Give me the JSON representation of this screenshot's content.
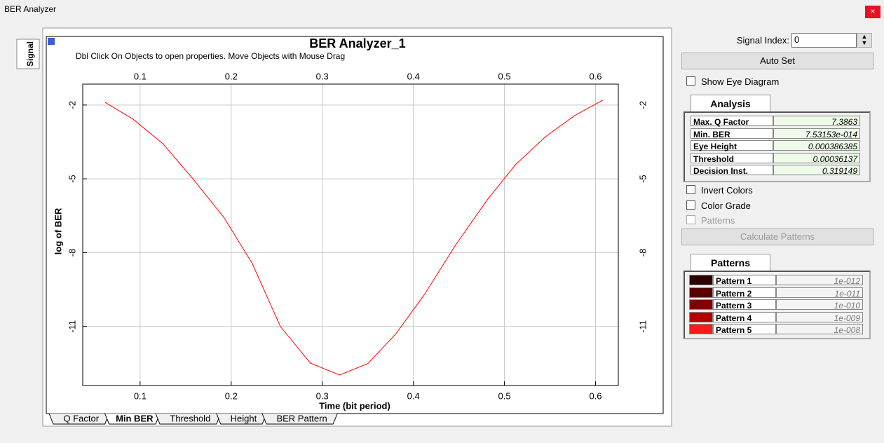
{
  "window": {
    "title": "BER Analyzer",
    "close": "×"
  },
  "side_tab": "Signal",
  "plot": {
    "tabs": [
      "Q Factor",
      "Min BER",
      "Threshold",
      "Height",
      "BER Pattern"
    ],
    "active_tab": 1
  },
  "chart_data": {
    "type": "line",
    "title": "BER Analyzer_1",
    "subtitle": "Dbl Click On Objects to open properties.  Move Objects with Mouse Drag",
    "x_label": "Time (bit period)",
    "y_label": "log of BER",
    "color": "#ff0000",
    "x": [
      0.0615,
      0.092,
      0.125,
      0.158,
      0.192,
      0.223,
      0.254,
      0.287,
      0.319,
      0.35,
      0.381,
      0.412,
      0.446,
      0.481,
      0.512,
      0.545,
      0.577,
      0.608
    ],
    "values": [
      -1.89,
      -2.57,
      -3.57,
      -5.0,
      -6.57,
      -8.43,
      -11.0,
      -12.49,
      -12.97,
      -12.51,
      -11.29,
      -9.71,
      -7.71,
      -5.86,
      -4.43,
      -3.29,
      -2.43,
      -1.8
    ],
    "xlim": [
      0.037,
      0.625
    ],
    "ylim": [
      -13.4,
      -1.15
    ],
    "xticks": [
      0.1,
      0.2,
      0.3,
      0.4,
      0.5,
      0.6
    ],
    "yticks": [
      -2,
      -5,
      -8,
      -11
    ],
    "grid": true
  },
  "controls": {
    "signal_index_label": "Signal Index:",
    "signal_index_value": "0",
    "auto_set": "Auto Set",
    "show_eye": "Show Eye Diagram",
    "analysis_tab": "Analysis",
    "analysis": [
      {
        "label": "Max. Q Factor",
        "value": "7.3863"
      },
      {
        "label": "Min. BER",
        "value": "7.53153e-014"
      },
      {
        "label": "Eye Height",
        "value": "0.000386385"
      },
      {
        "label": "Threshold",
        "value": "0.00036137"
      },
      {
        "label": "Decision Inst.",
        "value": "0.319149"
      }
    ],
    "invert": "Invert Colors",
    "color_grade": "Color Grade",
    "patterns_check": "Patterns",
    "calc": "Calculate Patterns",
    "patterns_tab": "Patterns",
    "patterns": [
      {
        "name": "Pattern 1",
        "color": "#2b0000",
        "value": "1e-012"
      },
      {
        "name": "Pattern 2",
        "color": "#560000",
        "value": "1e-011"
      },
      {
        "name": "Pattern 3",
        "color": "#800000",
        "value": "1e-010"
      },
      {
        "name": "Pattern 4",
        "color": "#b00000",
        "value": "1e-009"
      },
      {
        "name": "Pattern 5",
        "color": "#ff1a1a",
        "value": "1e-008"
      }
    ]
  }
}
